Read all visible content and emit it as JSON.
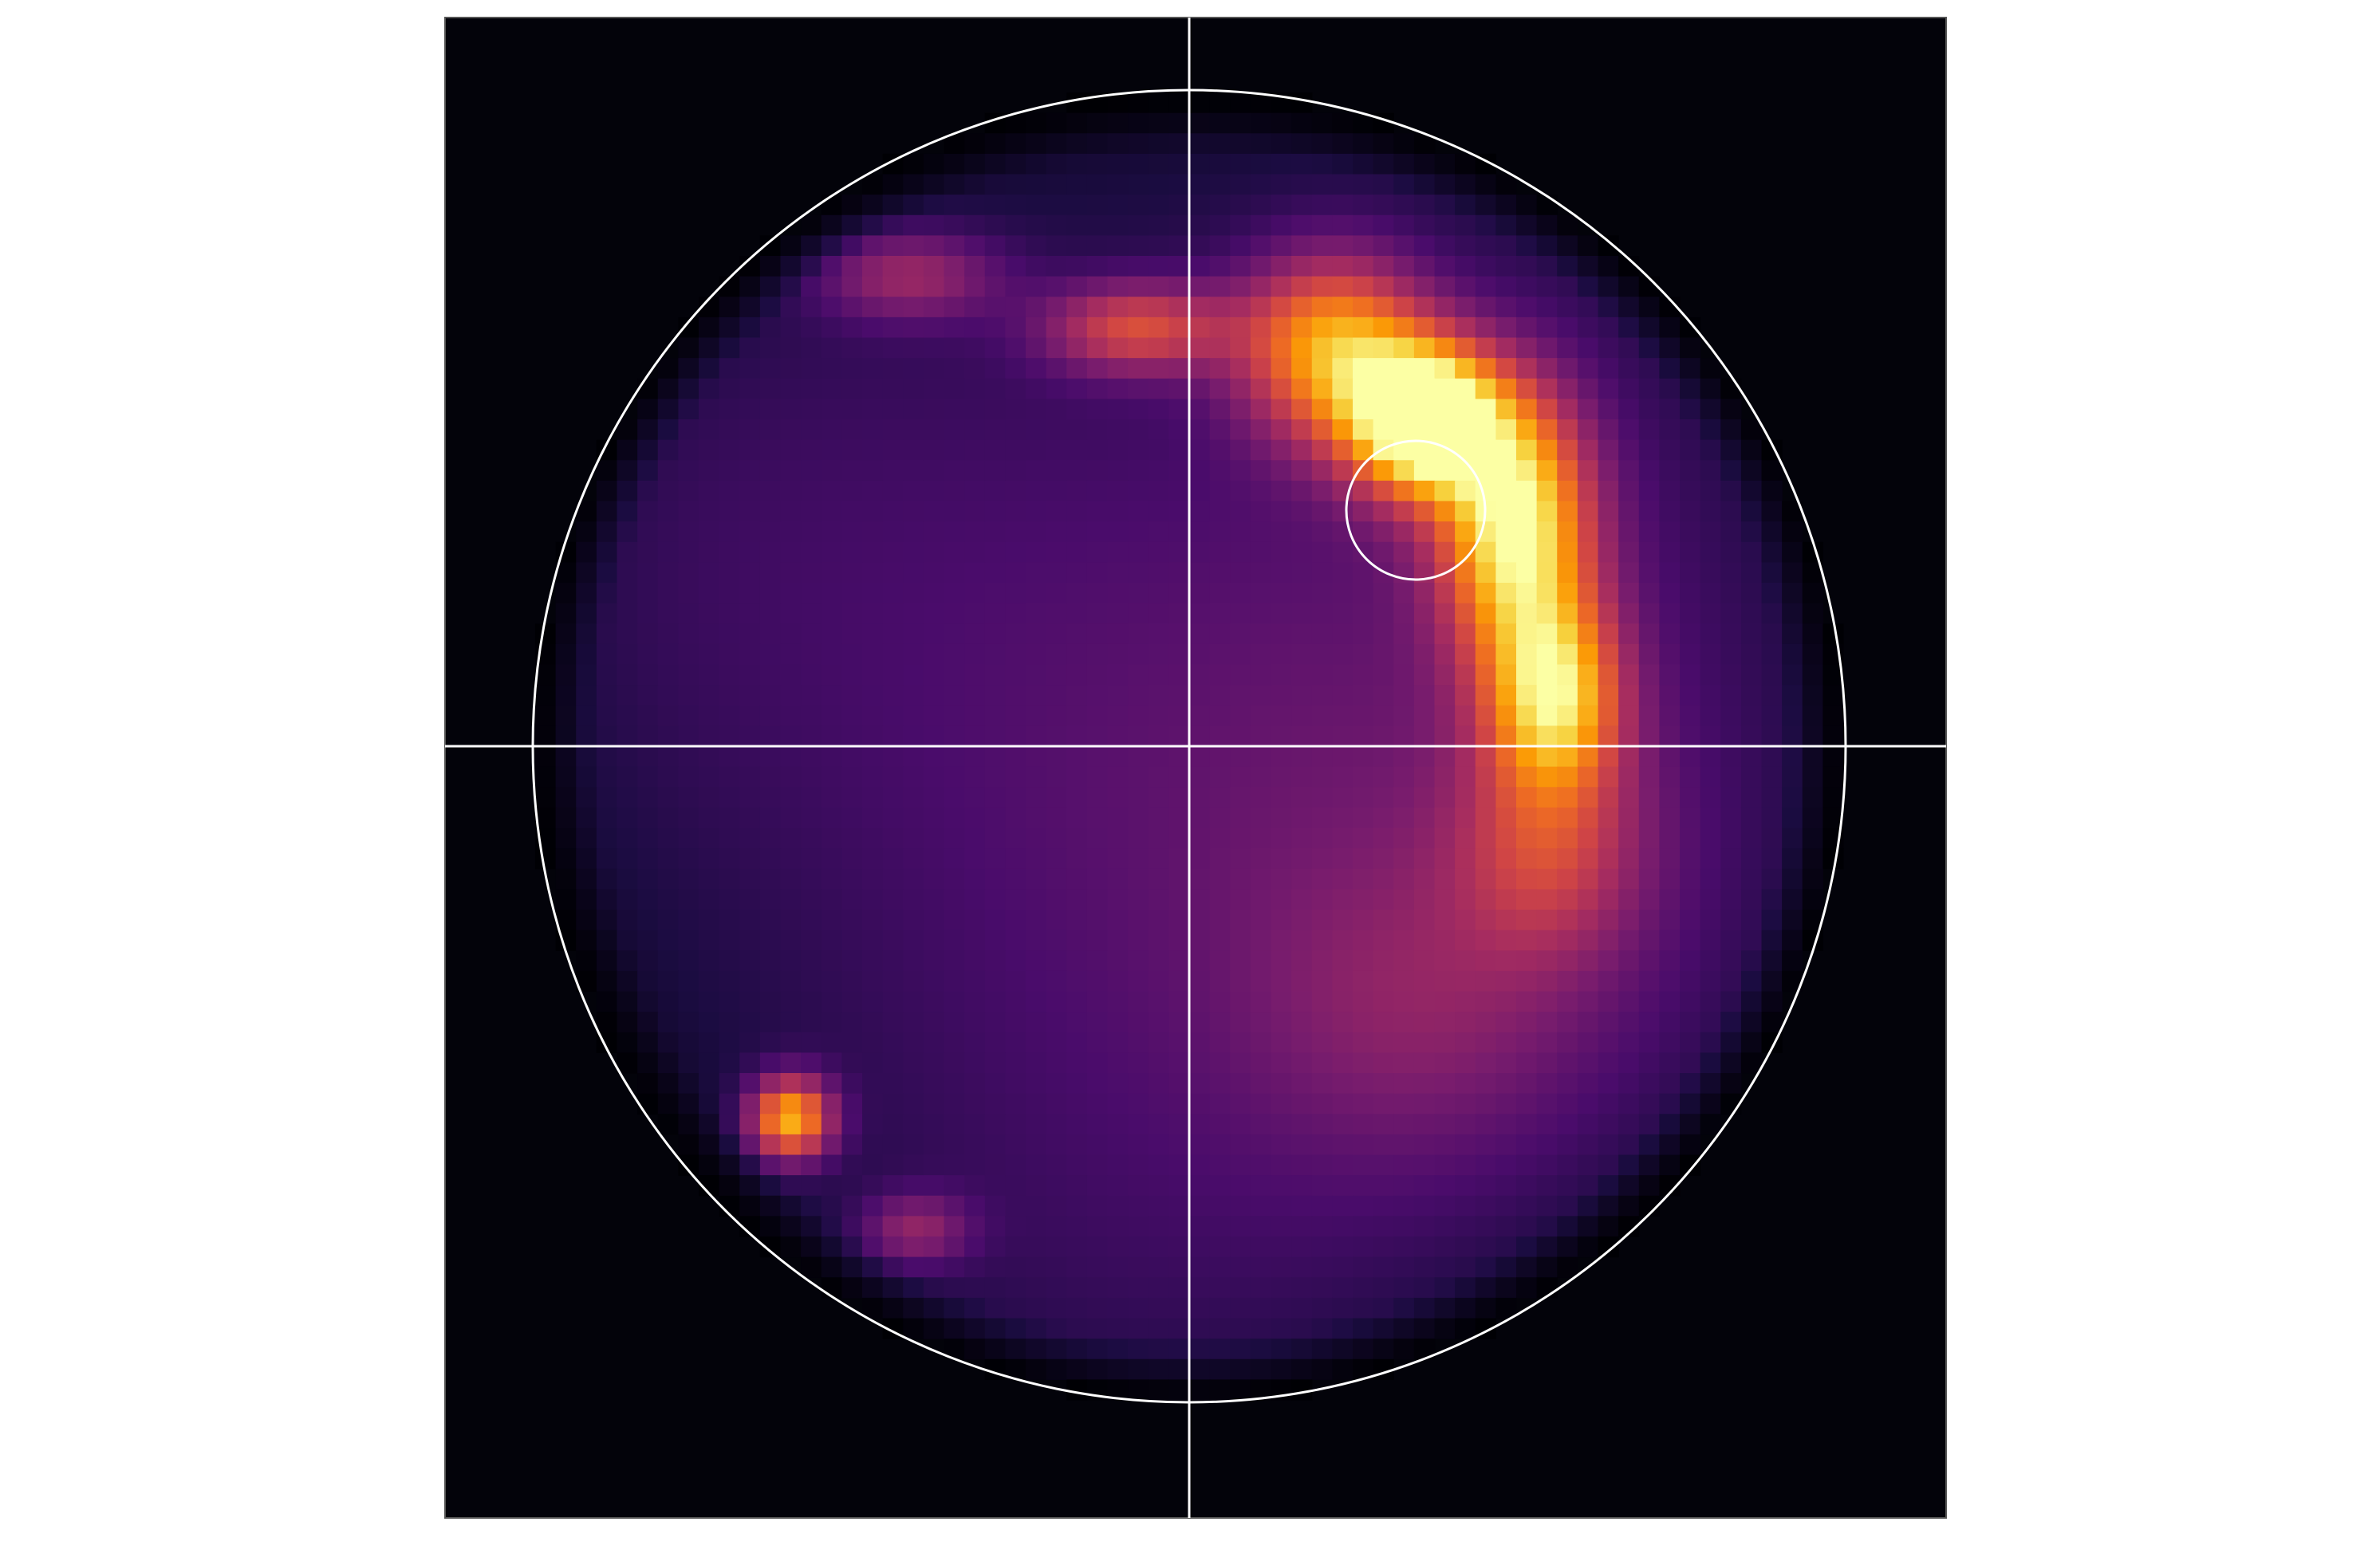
{
  "figure": {
    "background": "#ffffff",
    "panel_background": "#03030a",
    "overlay_color": "#ffffff",
    "colormap": "inferno",
    "colormap_stops": [
      "#000004",
      "#1b0c41",
      "#4a0c6b",
      "#781c6d",
      "#a52c60",
      "#cf4446",
      "#ed6925",
      "#fb9b06",
      "#f7d13d",
      "#fcffa4"
    ]
  },
  "heatmap": {
    "grid_size": 64,
    "hotspots": [
      {
        "name": "bright-arc-top",
        "u": 0.22,
        "v": -0.61,
        "su": 0.1,
        "sv": 0.1,
        "level": 0.62
      },
      {
        "name": "bright-arc-peak",
        "u": 0.36,
        "v": -0.5,
        "su": 0.08,
        "sv": 0.08,
        "level": 0.98
      },
      {
        "name": "bright-arc-mid",
        "u": 0.5,
        "v": -0.34,
        "su": 0.08,
        "sv": 0.14,
        "level": 0.78
      },
      {
        "name": "bright-arc-low",
        "u": 0.56,
        "v": -0.08,
        "su": 0.07,
        "sv": 0.1,
        "level": 0.62
      },
      {
        "name": "arc-tail",
        "u": 0.55,
        "v": 0.15,
        "su": 0.1,
        "sv": 0.12,
        "level": 0.28
      },
      {
        "name": "upper-left-blob",
        "u": -0.43,
        "v": -0.72,
        "su": 0.1,
        "sv": 0.05,
        "level": 0.28
      },
      {
        "name": "upper-mid-band",
        "u": -0.08,
        "v": -0.64,
        "su": 0.1,
        "sv": 0.05,
        "level": 0.42
      },
      {
        "name": "lower-left-spot",
        "u": -0.61,
        "v": 0.57,
        "su": 0.045,
        "sv": 0.045,
        "level": 0.7
      },
      {
        "name": "lower-left-trail",
        "u": -0.42,
        "v": 0.74,
        "su": 0.06,
        "sv": 0.04,
        "level": 0.25
      },
      {
        "name": "right-lower-glow",
        "u": 0.35,
        "v": 0.4,
        "su": 0.18,
        "sv": 0.16,
        "level": 0.12
      }
    ]
  }
}
